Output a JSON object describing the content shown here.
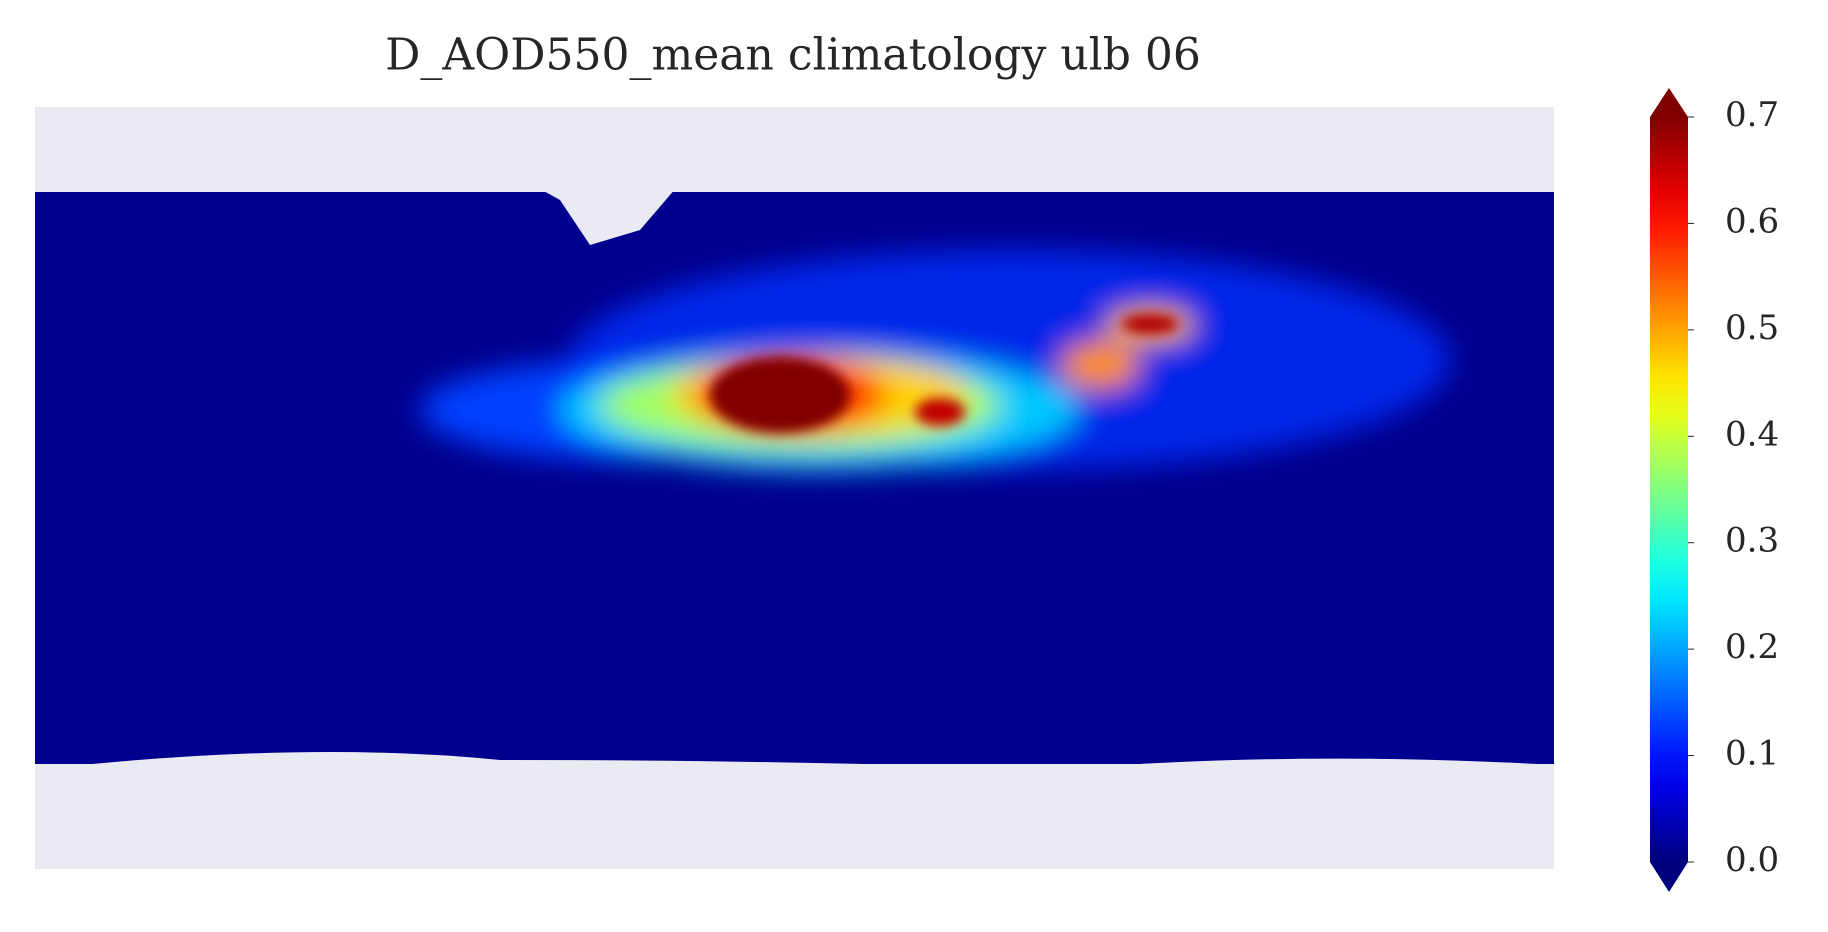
{
  "chart_data": {
    "type": "map",
    "title": "D_AOD550_mean climatology ulb 06",
    "colorbar": {
      "colormap": "jet",
      "clim": [
        0,
        0.7
      ],
      "extend": "both",
      "ticks": [
        {
          "value": 0,
          "label": "0.0"
        },
        0.1,
        0.2,
        0.3,
        0.4,
        0.5,
        0.6,
        0.7
      ]
    }
  }
}
